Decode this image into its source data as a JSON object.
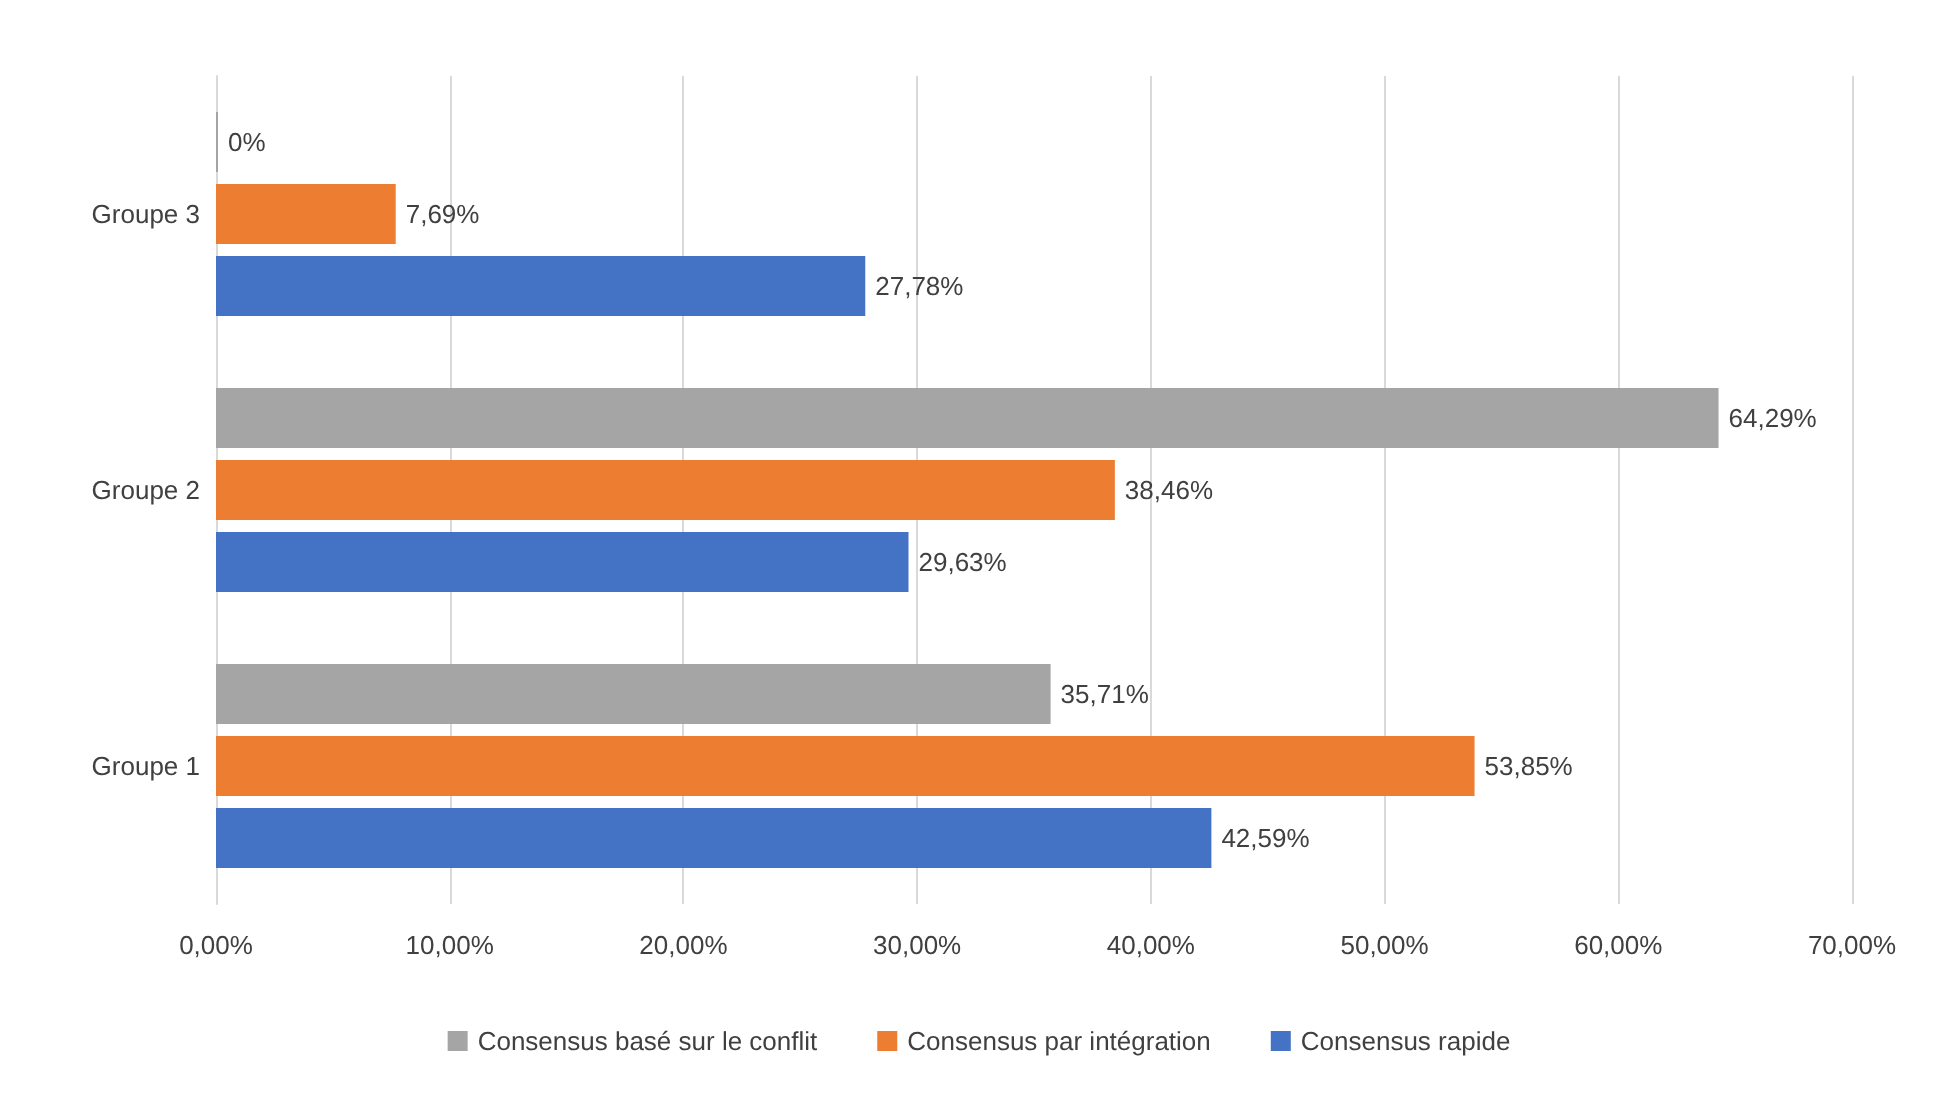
{
  "chart_data": {
    "type": "bar",
    "orientation": "horizontal",
    "categories": [
      "Groupe 3",
      "Groupe 2",
      "Groupe 1"
    ],
    "series": [
      {
        "name": "Consensus basé sur le conflit",
        "color": "#a5a5a5",
        "values": [
          0,
          64.29,
          35.71
        ],
        "value_labels": [
          "0%",
          "64,29%",
          "35,71%"
        ]
      },
      {
        "name": "Consensus par intégration",
        "color": "#ed7d31",
        "values": [
          7.69,
          38.46,
          53.85
        ],
        "value_labels": [
          "7,69%",
          "38,46%",
          "53,85%"
        ]
      },
      {
        "name": "Consensus rapide",
        "color": "#4472c4",
        "values": [
          27.78,
          29.63,
          42.59
        ],
        "value_labels": [
          "27,78%",
          "29,63%",
          "42,59%"
        ]
      }
    ],
    "xlim": [
      0,
      70
    ],
    "xticks": [
      {
        "value": 0,
        "label": "0,00%"
      },
      {
        "value": 10,
        "label": "10,00%"
      },
      {
        "value": 20,
        "label": "20,00%"
      },
      {
        "value": 30,
        "label": "30,00%"
      },
      {
        "value": 40,
        "label": "40,00%"
      },
      {
        "value": 50,
        "label": "50,00%"
      },
      {
        "value": 60,
        "label": "60,00%"
      },
      {
        "value": 70,
        "label": "70,00%"
      }
    ],
    "grid": "x",
    "legend": "bottom"
  }
}
